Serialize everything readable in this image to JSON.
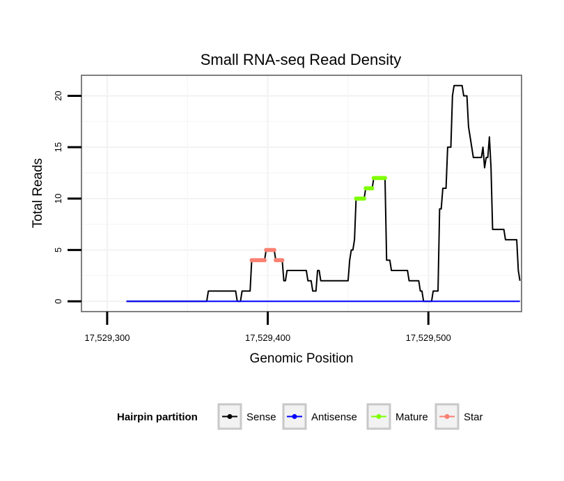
{
  "chart_data": {
    "type": "line",
    "title": "Small RNA-seq Read Density",
    "xlabel": "Genomic Position",
    "ylabel": "Total Reads",
    "xlim": [
      17529284,
      17529558
    ],
    "ylim": [
      -1,
      22
    ],
    "x_ticks": [
      17529300,
      17529400,
      17529500
    ],
    "x_tick_labels": [
      "17,529,300",
      "17,529,400",
      "17,529,500"
    ],
    "y_ticks": [
      0,
      5,
      10,
      15,
      20
    ],
    "y_tick_labels": [
      "0",
      "5",
      "10",
      "15",
      "20"
    ],
    "grid": true,
    "legend": {
      "title": "Hairpin partition",
      "placement": "bottom",
      "entries": [
        {
          "name": "Sense",
          "color": "#000000"
        },
        {
          "name": "Antisense",
          "color": "#0000ff"
        },
        {
          "name": "Mature",
          "color": "#7fff00"
        },
        {
          "name": "Star",
          "color": "#fa8072"
        }
      ]
    },
    "series": [
      {
        "name": "Sense",
        "color": "#000000",
        "points": [
          [
            17529312,
            0
          ],
          [
            17529362,
            0
          ],
          [
            17529363,
            1
          ],
          [
            17529380,
            1
          ],
          [
            17529381,
            0
          ],
          [
            17529383,
            0
          ],
          [
            17529384,
            1
          ],
          [
            17529389,
            1
          ],
          [
            17529390,
            4
          ],
          [
            17529398,
            4
          ],
          [
            17529399,
            5
          ],
          [
            17529404,
            5
          ],
          [
            17529405,
            4
          ],
          [
            17529409,
            4
          ],
          [
            17529410,
            2
          ],
          [
            17529411,
            2
          ],
          [
            17529412,
            3
          ],
          [
            17529424,
            3
          ],
          [
            17529425,
            2
          ],
          [
            17529427,
            2
          ],
          [
            17529428,
            1
          ],
          [
            17529430,
            1
          ],
          [
            17529431,
            3
          ],
          [
            17529432,
            3
          ],
          [
            17529433,
            2
          ],
          [
            17529450,
            2
          ],
          [
            17529451,
            4
          ],
          [
            17529452,
            5
          ],
          [
            17529453,
            5
          ],
          [
            17529454,
            6
          ],
          [
            17529455,
            10
          ],
          [
            17529460,
            10
          ],
          [
            17529461,
            11
          ],
          [
            17529465,
            11
          ],
          [
            17529466,
            12
          ],
          [
            17529473,
            12
          ],
          [
            17529474,
            4
          ],
          [
            17529476,
            4
          ],
          [
            17529477,
            3
          ],
          [
            17529487,
            3
          ],
          [
            17529488,
            2
          ],
          [
            17529494,
            2
          ],
          [
            17529495,
            1
          ],
          [
            17529496,
            1
          ],
          [
            17529497,
            0
          ],
          [
            17529502,
            0
          ],
          [
            17529503,
            1
          ],
          [
            17529506,
            1
          ],
          [
            17529507,
            9
          ],
          [
            17529508,
            9
          ],
          [
            17529509,
            11
          ],
          [
            17529511,
            11
          ],
          [
            17529512,
            15
          ],
          [
            17529514,
            15
          ],
          [
            17529515,
            20
          ],
          [
            17529516,
            21
          ],
          [
            17529521,
            21
          ],
          [
            17529522,
            20
          ],
          [
            17529524,
            20
          ],
          [
            17529525,
            17
          ],
          [
            17529526,
            16
          ],
          [
            17529528,
            14
          ],
          [
            17529533,
            14
          ],
          [
            17529534,
            15
          ],
          [
            17529535,
            13
          ],
          [
            17529536,
            14
          ],
          [
            17529537,
            14
          ],
          [
            17529538,
            16
          ],
          [
            17529539,
            13
          ],
          [
            17529540,
            7
          ],
          [
            17529547,
            7
          ],
          [
            17529548,
            6
          ],
          [
            17529555,
            6
          ],
          [
            17529556,
            3
          ],
          [
            17529557,
            2
          ]
        ]
      },
      {
        "name": "Antisense",
        "color": "#0000ff",
        "points": [
          [
            17529312,
            0
          ],
          [
            17529557,
            0
          ]
        ]
      },
      {
        "name": "Mature",
        "color": "#7fff00",
        "points": [
          [
            17529455,
            10
          ],
          [
            17529456,
            10
          ],
          [
            17529457,
            10
          ],
          [
            17529458,
            10
          ],
          [
            17529459,
            10
          ],
          [
            17529460,
            10
          ],
          [
            17529461,
            11
          ],
          [
            17529462,
            11
          ],
          [
            17529463,
            11
          ],
          [
            17529464,
            11
          ],
          [
            17529465,
            11
          ],
          [
            17529466,
            12
          ],
          [
            17529467,
            12
          ],
          [
            17529468,
            12
          ],
          [
            17529469,
            12
          ],
          [
            17529470,
            12
          ],
          [
            17529471,
            12
          ],
          [
            17529472,
            12
          ],
          [
            17529473,
            12
          ]
        ]
      },
      {
        "name": "Star",
        "color": "#fa8072",
        "points": [
          [
            17529390,
            4
          ],
          [
            17529391,
            4
          ],
          [
            17529392,
            4
          ],
          [
            17529393,
            4
          ],
          [
            17529394,
            4
          ],
          [
            17529395,
            4
          ],
          [
            17529396,
            4
          ],
          [
            17529397,
            4
          ],
          [
            17529398,
            4
          ],
          [
            17529399,
            5
          ],
          [
            17529400,
            5
          ],
          [
            17529401,
            5
          ],
          [
            17529402,
            5
          ],
          [
            17529403,
            5
          ],
          [
            17529404,
            5
          ],
          [
            17529405,
            4
          ],
          [
            17529406,
            4
          ],
          [
            17529407,
            4
          ],
          [
            17529408,
            4
          ],
          [
            17529409,
            4
          ]
        ]
      }
    ]
  }
}
